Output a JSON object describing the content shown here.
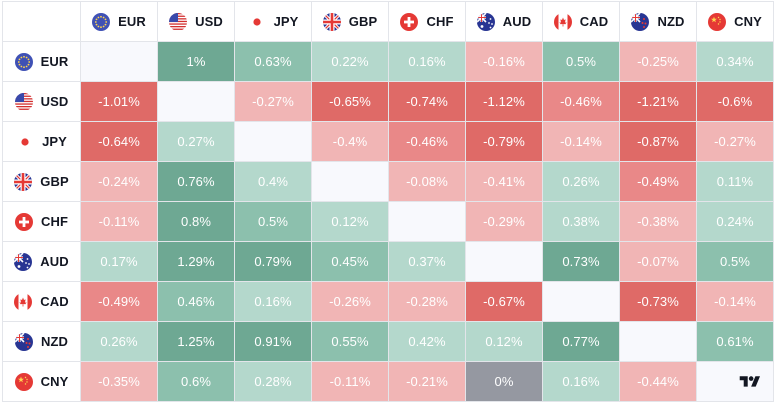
{
  "currencies": [
    {
      "code": "EUR",
      "flag": "eu-flag-icon"
    },
    {
      "code": "USD",
      "flag": "us-flag-icon"
    },
    {
      "code": "JPY",
      "flag": "jp-flag-icon"
    },
    {
      "code": "GBP",
      "flag": "gb-flag-icon"
    },
    {
      "code": "CHF",
      "flag": "ch-flag-icon"
    },
    {
      "code": "AUD",
      "flag": "au-flag-icon"
    },
    {
      "code": "CAD",
      "flag": "ca-flag-icon"
    },
    {
      "code": "NZD",
      "flag": "nz-flag-icon"
    },
    {
      "code": "CNY",
      "flag": "cn-flag-icon"
    }
  ],
  "matrix": [
    [
      null,
      "1%",
      "0.63%",
      "0.22%",
      "0.16%",
      "-0.16%",
      "0.5%",
      "-0.25%",
      "0.34%"
    ],
    [
      "-1.01%",
      null,
      "-0.27%",
      "-0.65%",
      "-0.74%",
      "-1.12%",
      "-0.46%",
      "-1.21%",
      "-0.6%"
    ],
    [
      "-0.64%",
      "0.27%",
      null,
      "-0.4%",
      "-0.46%",
      "-0.79%",
      "-0.14%",
      "-0.87%",
      "-0.27%"
    ],
    [
      "-0.24%",
      "0.76%",
      "0.4%",
      null,
      "-0.08%",
      "-0.41%",
      "0.26%",
      "-0.49%",
      "0.11%"
    ],
    [
      "-0.11%",
      "0.8%",
      "0.5%",
      "0.12%",
      null,
      "-0.29%",
      "0.38%",
      "-0.38%",
      "0.24%"
    ],
    [
      "0.17%",
      "1.29%",
      "0.79%",
      "0.45%",
      "0.37%",
      null,
      "0.73%",
      "-0.07%",
      "0.5%"
    ],
    [
      "-0.49%",
      "0.46%",
      "0.16%",
      "-0.26%",
      "-0.28%",
      "-0.67%",
      null,
      "-0.73%",
      "-0.14%"
    ],
    [
      "0.26%",
      "1.25%",
      "0.91%",
      "0.55%",
      "0.42%",
      "0.12%",
      "0.77%",
      null,
      "0.61%"
    ],
    [
      "-0.35%",
      "0.6%",
      "0.28%",
      "-0.11%",
      "-0.21%",
      "0%",
      "0.16%",
      "-0.44%",
      null
    ]
  ],
  "colors": {
    "positive_light": "#b4d8cc",
    "positive_mid": "#8cc0ad",
    "positive_strong": "#6ea893",
    "negative_light": "#f1b5b5",
    "negative_mid": "#e98888",
    "negative_strong": "#df6a67",
    "zero": "#9598a1",
    "diagonal": "#f8f9fd",
    "header_text": "#131722"
  },
  "branding": {
    "logo": "tradingview-logo-icon"
  }
}
